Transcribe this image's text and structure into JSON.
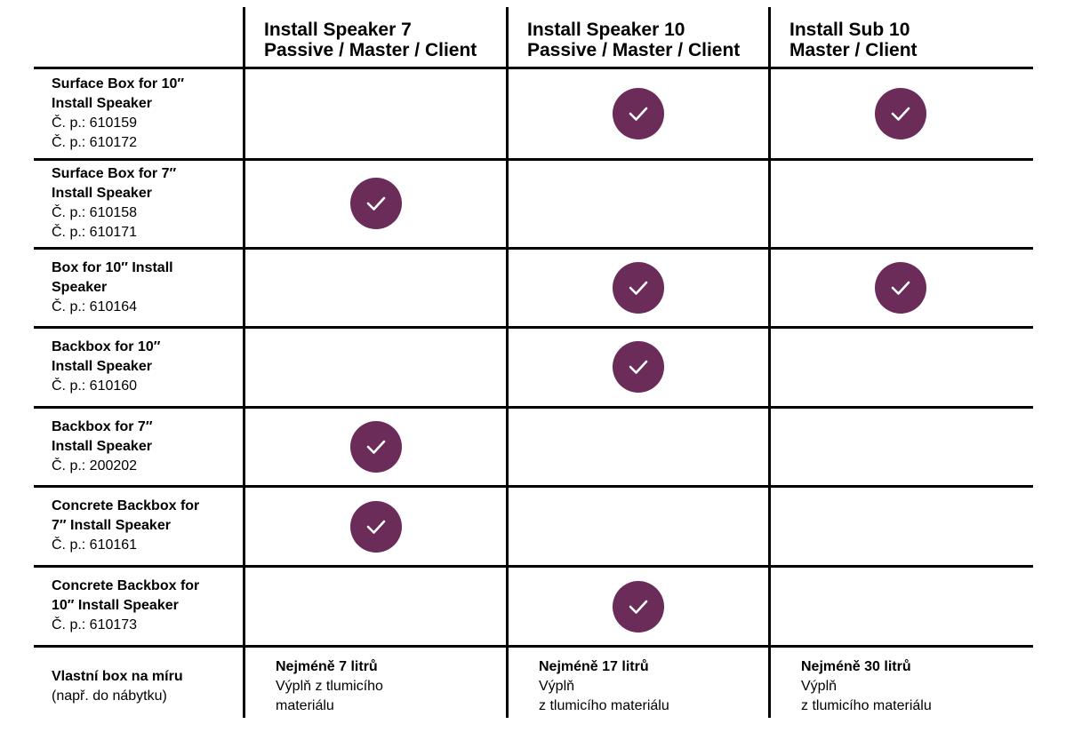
{
  "columns": [
    {
      "line1": "Install Speaker 7",
      "line2": "Passive / Master / Client"
    },
    {
      "line1": "Install Speaker 10",
      "line2": "Passive / Master / Client"
    },
    {
      "line1": "Install Sub 10",
      "line2": "Master / Client"
    }
  ],
  "rows": [
    {
      "name": [
        "Surface Box for 10″",
        "Install Speaker"
      ],
      "parts": [
        "Č. p.: 610159",
        "Č. p.: 610172"
      ],
      "checks": [
        false,
        true,
        true
      ]
    },
    {
      "name": [
        "Surface Box for 7″",
        "Install Speaker"
      ],
      "parts": [
        "Č. p.: 610158",
        "Č. p.: 610171"
      ],
      "checks": [
        true,
        false,
        false
      ]
    },
    {
      "name": [
        "Box for 10″ Install",
        "Speaker"
      ],
      "parts": [
        "Č. p.: 610164"
      ],
      "checks": [
        false,
        true,
        true
      ]
    },
    {
      "name": [
        "Backbox for 10″",
        "Install Speaker"
      ],
      "parts": [
        "Č. p.: 610160"
      ],
      "checks": [
        false,
        true,
        false
      ]
    },
    {
      "name": [
        "Backbox for 7″",
        "Install Speaker"
      ],
      "parts": [
        "Č. p.: 200202"
      ],
      "checks": [
        true,
        false,
        false
      ]
    },
    {
      "name": [
        "Concrete Backbox for",
        "7″ Install Speaker"
      ],
      "parts": [
        "Č. p.: 610161"
      ],
      "checks": [
        true,
        false,
        false
      ]
    },
    {
      "name": [
        "Concrete Backbox for",
        "10″ Install Speaker"
      ],
      "parts": [
        "Č. p.: 610173"
      ],
      "checks": [
        false,
        true,
        false
      ]
    }
  ],
  "footer": {
    "label": "Vlastní box na míru",
    "sublabel": "(např. do nábytku)",
    "cells": [
      {
        "bold": "Nejméně 7 litrů",
        "lines": [
          "Výplň z tlumicího",
          "materiálu"
        ]
      },
      {
        "bold": "Nejméně 17 litrů",
        "lines": [
          "Výplň",
          "z tlumicího materiálu"
        ]
      },
      {
        "bold": "Nejméně 30 litrů",
        "lines": [
          "Výplň",
          "z tlumicího materiálu"
        ]
      }
    ]
  },
  "colors": {
    "check": "#6b2c5a",
    "lines": "#000000"
  },
  "icons": {
    "check": "checkmark-icon"
  }
}
